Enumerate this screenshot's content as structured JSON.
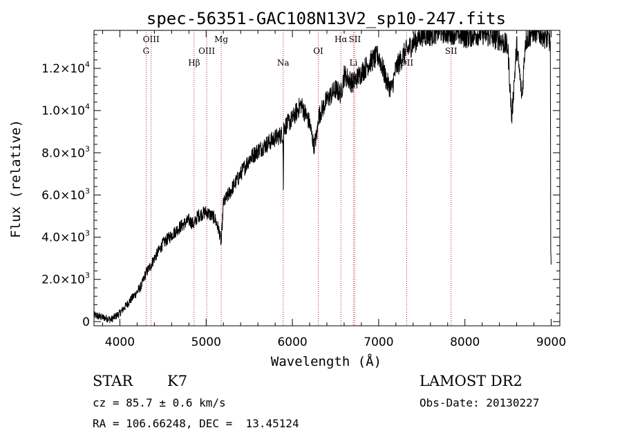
{
  "chart_data": {
    "type": "line",
    "title": "spec-56351-GAC108N13V2_sp10-247.fits",
    "xlabel": "Wavelength (Å)",
    "ylabel": "Flux (relative)",
    "xlim": [
      3700,
      9100
    ],
    "ylim": [
      -200,
      13800
    ],
    "x_ticks": [
      {
        "value": 4000,
        "label": "4000"
      },
      {
        "value": 5000,
        "label": "5000"
      },
      {
        "value": 6000,
        "label": "6000"
      },
      {
        "value": 7000,
        "label": "7000"
      },
      {
        "value": 8000,
        "label": "8000"
      },
      {
        "value": 9000,
        "label": "9000"
      }
    ],
    "y_ticks": [
      {
        "value": 0,
        "mantissa": "0",
        "exp": ""
      },
      {
        "value": 2000,
        "mantissa": "2.0×10",
        "exp": "3"
      },
      {
        "value": 4000,
        "mantissa": "4.0×10",
        "exp": "3"
      },
      {
        "value": 6000,
        "mantissa": "6.0×10",
        "exp": "3"
      },
      {
        "value": 8000,
        "mantissa": "8.0×10",
        "exp": "3"
      },
      {
        "value": 10000,
        "mantissa": "1.0×10",
        "exp": "4"
      },
      {
        "value": 12000,
        "mantissa": "1.2×10",
        "exp": "4"
      }
    ],
    "spectrum": {
      "x": [
        3700,
        3800,
        3900,
        4000,
        4100,
        4200,
        4250,
        4300,
        4350,
        4400,
        4500,
        4600,
        4700,
        4800,
        4861,
        4900,
        5000,
        5100,
        5150,
        5175,
        5200,
        5300,
        5400,
        5500,
        5600,
        5700,
        5800,
        5890,
        5895,
        5900,
        6000,
        6100,
        6200,
        6250,
        6290,
        6300,
        6400,
        6500,
        6563,
        6600,
        6700,
        6800,
        6900,
        7000,
        7100,
        7150,
        7200,
        7300,
        7400,
        7500,
        7600,
        7700,
        7800,
        7900,
        8000,
        8100,
        8200,
        8300,
        8400,
        8498,
        8542,
        8600,
        8662,
        8700,
        8800,
        8900,
        8990,
        8995,
        9000
      ],
      "y": [
        300,
        200,
        100,
        400,
        900,
        1400,
        1700,
        2300,
        2600,
        3000,
        3700,
        4100,
        4500,
        4800,
        4600,
        5000,
        5200,
        4900,
        4300,
        3700,
        5600,
        6300,
        7000,
        7700,
        8100,
        8400,
        8700,
        8900,
        6300,
        9200,
        9600,
        10300,
        9400,
        8300,
        9000,
        9700,
        10500,
        11000,
        10800,
        11700,
        11300,
        11800,
        12300,
        12600,
        11300,
        11000,
        12000,
        12700,
        13200,
        13600,
        13600,
        13800,
        13700,
        13700,
        13500,
        13600,
        13700,
        13500,
        13400,
        13000,
        9600,
        13100,
        10600,
        13300,
        13800,
        13600,
        13300,
        3200,
        2600
      ]
    },
    "lines": [
      {
        "name": "OIII",
        "x": 4363,
        "level": 1
      },
      {
        "name": "G",
        "x": 4304,
        "level": 2
      },
      {
        "name": "Hβ",
        "x": 4861,
        "level": 3
      },
      {
        "name": "OIII",
        "x": 5007,
        "level": 2
      },
      {
        "name": "Mg",
        "x": 5175,
        "level": 1
      },
      {
        "name": "Na",
        "x": 5893,
        "level": 3
      },
      {
        "name": "OI",
        "x": 6300,
        "level": 2
      },
      {
        "name": "Hα",
        "x": 6563,
        "level": 1
      },
      {
        "name": "SII",
        "x": 6724,
        "level": 1
      },
      {
        "name": "Li",
        "x": 6708,
        "level": 3
      },
      {
        "name": "OII",
        "x": 7325,
        "level": 3
      },
      {
        "name": "SII",
        "x": 7840,
        "level": 2
      }
    ],
    "colors": {
      "spectrum": "#000000",
      "lines": "#b22222"
    }
  },
  "footer": {
    "object_type": "STAR",
    "subclass": "K7",
    "survey": "LAMOST DR2",
    "velocity": "cz = 85.7 ± 0.6 km/s",
    "obs_date": "Obs-Date: 20130227",
    "coords": "RA = 106.66248, DEC =  13.45124"
  }
}
